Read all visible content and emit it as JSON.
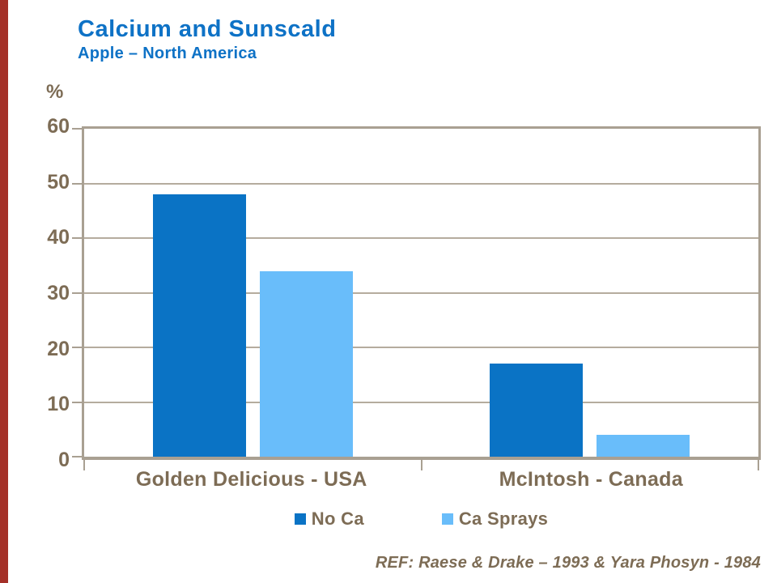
{
  "slide": {
    "background_color": "#ffffff",
    "accent_bar_color": "#a43028"
  },
  "header": {
    "title": "Calcium and Sunscald",
    "subtitle": "Apple – North America",
    "title_color": "#0e72c6"
  },
  "chart_data": {
    "type": "bar",
    "title": "Calcium and Sunscald",
    "subtitle": "Apple – North America",
    "xlabel": "",
    "ylabel": "%",
    "ylim": [
      0,
      60
    ],
    "yticks": [
      0,
      10,
      20,
      30,
      40,
      50,
      60
    ],
    "grid": true,
    "legend_position": "bottom",
    "categories": [
      "Golden Delicious - USA",
      "McIntosh - Canada"
    ],
    "series": [
      {
        "name": "No Ca",
        "color": "#0a73c5",
        "values": [
          48,
          17
        ]
      },
      {
        "name": "Ca Sprays",
        "color": "#69bdfa",
        "values": [
          34,
          4
        ]
      }
    ]
  },
  "footer": {
    "reference": "REF: Raese & Drake – 1993 & Yara Phosyn - 1984"
  },
  "colors": {
    "axis_text": "#7d6c55",
    "gridline": "#b5ac9e",
    "plot_border": "#a9a092"
  }
}
